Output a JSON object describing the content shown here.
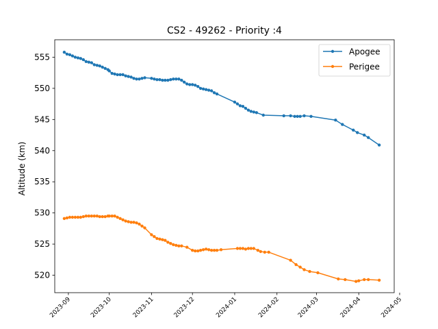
{
  "chart_data": {
    "type": "line",
    "title": "CS2 - 49262 - Priority :4",
    "xlabel": "",
    "ylabel": "Altitude (km)",
    "xlim": [
      "2023-08-22",
      "2024-04-27"
    ],
    "ylim": [
      517.2,
      557.8
    ],
    "x_tick_labels": [
      "2023-09",
      "2023-10",
      "2023-11",
      "2023-12",
      "2024-01",
      "2024-02",
      "2024-03",
      "2024-04",
      "2024-05"
    ],
    "x_ticks": [
      "2023-09-01",
      "2023-10-01",
      "2023-11-01",
      "2023-12-01",
      "2024-01-01",
      "2024-02-01",
      "2024-03-01",
      "2024-04-01",
      "2024-05-01"
    ],
    "y_ticks": [
      520,
      525,
      530,
      535,
      540,
      545,
      550,
      555
    ],
    "grid": false,
    "legend": "top-right",
    "series": [
      {
        "name": "Apogee",
        "color": "#1f77b4",
        "points": [
          [
            "2023-08-29",
            555.8
          ],
          [
            "2023-08-31",
            555.5
          ],
          [
            "2023-09-02",
            555.4
          ],
          [
            "2023-09-04",
            555.2
          ],
          [
            "2023-09-06",
            555.0
          ],
          [
            "2023-09-08",
            554.9
          ],
          [
            "2023-09-10",
            554.8
          ],
          [
            "2023-09-12",
            554.6
          ],
          [
            "2023-09-14",
            554.3
          ],
          [
            "2023-09-16",
            554.2
          ],
          [
            "2023-09-18",
            554.1
          ],
          [
            "2023-09-20",
            553.8
          ],
          [
            "2023-09-22",
            553.7
          ],
          [
            "2023-09-24",
            553.6
          ],
          [
            "2023-09-26",
            553.4
          ],
          [
            "2023-09-28",
            553.2
          ],
          [
            "2023-09-30",
            553.0
          ],
          [
            "2023-10-01",
            552.8
          ],
          [
            "2023-10-03",
            552.4
          ],
          [
            "2023-10-05",
            552.3
          ],
          [
            "2023-10-07",
            552.2
          ],
          [
            "2023-10-09",
            552.2
          ],
          [
            "2023-10-11",
            552.2
          ],
          [
            "2023-10-13",
            552.0
          ],
          [
            "2023-10-15",
            551.9
          ],
          [
            "2023-10-17",
            551.8
          ],
          [
            "2023-10-19",
            551.6
          ],
          [
            "2023-10-21",
            551.5
          ],
          [
            "2023-10-23",
            551.5
          ],
          [
            "2023-10-25",
            551.6
          ],
          [
            "2023-10-27",
            551.7
          ],
          [
            "2023-11-01",
            551.6
          ],
          [
            "2023-11-03",
            551.5
          ],
          [
            "2023-11-05",
            551.4
          ],
          [
            "2023-11-07",
            551.4
          ],
          [
            "2023-11-09",
            551.3
          ],
          [
            "2023-11-11",
            551.3
          ],
          [
            "2023-11-13",
            551.3
          ],
          [
            "2023-11-15",
            551.4
          ],
          [
            "2023-11-17",
            551.5
          ],
          [
            "2023-11-19",
            551.5
          ],
          [
            "2023-11-21",
            551.5
          ],
          [
            "2023-11-23",
            551.3
          ],
          [
            "2023-11-25",
            551.0
          ],
          [
            "2023-11-27",
            550.7
          ],
          [
            "2023-11-29",
            550.6
          ],
          [
            "2023-12-01",
            550.6
          ],
          [
            "2023-12-03",
            550.5
          ],
          [
            "2023-12-05",
            550.3
          ],
          [
            "2023-12-07",
            550.0
          ],
          [
            "2023-12-09",
            549.9
          ],
          [
            "2023-12-11",
            549.8
          ],
          [
            "2023-12-13",
            549.7
          ],
          [
            "2023-12-15",
            549.6
          ],
          [
            "2023-12-17",
            549.3
          ],
          [
            "2023-12-19",
            549.1
          ],
          [
            "2024-01-01",
            547.8
          ],
          [
            "2024-01-03",
            547.5
          ],
          [
            "2024-01-05",
            547.2
          ],
          [
            "2024-01-07",
            547.1
          ],
          [
            "2024-01-09",
            546.8
          ],
          [
            "2024-01-11",
            546.5
          ],
          [
            "2024-01-13",
            546.3
          ],
          [
            "2024-01-15",
            546.2
          ],
          [
            "2024-01-17",
            546.1
          ],
          [
            "2024-01-22",
            545.7
          ],
          [
            "2024-02-06",
            545.6
          ],
          [
            "2024-02-11",
            545.6
          ],
          [
            "2024-02-14",
            545.5
          ],
          [
            "2024-02-16",
            545.5
          ],
          [
            "2024-02-18",
            545.5
          ],
          [
            "2024-02-21",
            545.6
          ],
          [
            "2024-02-26",
            545.5
          ],
          [
            "2024-03-15",
            544.9
          ],
          [
            "2024-03-20",
            544.2
          ],
          [
            "2024-03-28",
            543.3
          ],
          [
            "2024-03-31",
            542.9
          ],
          [
            "2024-04-05",
            542.5
          ],
          [
            "2024-04-08",
            542.1
          ],
          [
            "2024-04-16",
            540.9
          ]
        ]
      },
      {
        "name": "Perigee",
        "color": "#ff7f0e",
        "points": [
          [
            "2023-08-29",
            529.1
          ],
          [
            "2023-08-31",
            529.2
          ],
          [
            "2023-09-02",
            529.3
          ],
          [
            "2023-09-04",
            529.3
          ],
          [
            "2023-09-06",
            529.3
          ],
          [
            "2023-09-08",
            529.3
          ],
          [
            "2023-09-10",
            529.3
          ],
          [
            "2023-09-12",
            529.4
          ],
          [
            "2023-09-14",
            529.5
          ],
          [
            "2023-09-16",
            529.5
          ],
          [
            "2023-09-18",
            529.5
          ],
          [
            "2023-09-20",
            529.5
          ],
          [
            "2023-09-22",
            529.5
          ],
          [
            "2023-09-24",
            529.4
          ],
          [
            "2023-09-26",
            529.4
          ],
          [
            "2023-09-28",
            529.4
          ],
          [
            "2023-09-30",
            529.5
          ],
          [
            "2023-10-01",
            529.5
          ],
          [
            "2023-10-03",
            529.5
          ],
          [
            "2023-10-05",
            529.5
          ],
          [
            "2023-10-07",
            529.3
          ],
          [
            "2023-10-09",
            529.1
          ],
          [
            "2023-10-11",
            528.9
          ],
          [
            "2023-10-13",
            528.7
          ],
          [
            "2023-10-15",
            528.6
          ],
          [
            "2023-10-17",
            528.5
          ],
          [
            "2023-10-19",
            528.5
          ],
          [
            "2023-10-21",
            528.4
          ],
          [
            "2023-10-23",
            528.2
          ],
          [
            "2023-10-25",
            527.9
          ],
          [
            "2023-10-27",
            527.6
          ],
          [
            "2023-11-01",
            526.5
          ],
          [
            "2023-11-03",
            526.2
          ],
          [
            "2023-11-05",
            525.9
          ],
          [
            "2023-11-07",
            525.8
          ],
          [
            "2023-11-09",
            525.7
          ],
          [
            "2023-11-11",
            525.6
          ],
          [
            "2023-11-13",
            525.3
          ],
          [
            "2023-11-15",
            525.1
          ],
          [
            "2023-11-17",
            524.9
          ],
          [
            "2023-11-19",
            524.8
          ],
          [
            "2023-11-21",
            524.7
          ],
          [
            "2023-11-23",
            524.7
          ],
          [
            "2023-11-27",
            524.5
          ],
          [
            "2023-12-01",
            524.0
          ],
          [
            "2023-12-03",
            523.9
          ],
          [
            "2023-12-05",
            523.9
          ],
          [
            "2023-12-07",
            524.0
          ],
          [
            "2023-12-09",
            524.1
          ],
          [
            "2023-12-11",
            524.2
          ],
          [
            "2023-12-13",
            524.1
          ],
          [
            "2023-12-15",
            524.0
          ],
          [
            "2023-12-17",
            524.0
          ],
          [
            "2023-12-19",
            524.0
          ],
          [
            "2023-12-22",
            524.1
          ],
          [
            "2024-01-03",
            524.3
          ],
          [
            "2024-01-05",
            524.3
          ],
          [
            "2024-01-07",
            524.3
          ],
          [
            "2024-01-09",
            524.2
          ],
          [
            "2024-01-11",
            524.3
          ],
          [
            "2024-01-13",
            524.3
          ],
          [
            "2024-01-15",
            524.3
          ],
          [
            "2024-01-18",
            524.0
          ],
          [
            "2024-01-20",
            523.8
          ],
          [
            "2024-01-23",
            523.7
          ],
          [
            "2024-01-26",
            523.7
          ],
          [
            "2024-02-11",
            522.4
          ],
          [
            "2024-02-15",
            521.7
          ],
          [
            "2024-02-18",
            521.3
          ],
          [
            "2024-02-21",
            520.9
          ],
          [
            "2024-02-25",
            520.6
          ],
          [
            "2024-03-02",
            520.4
          ],
          [
            "2024-03-17",
            519.4
          ],
          [
            "2024-03-22",
            519.3
          ],
          [
            "2024-03-30",
            519.0
          ],
          [
            "2024-04-01",
            519.1
          ],
          [
            "2024-04-05",
            519.3
          ],
          [
            "2024-04-08",
            519.3
          ],
          [
            "2024-04-16",
            519.2
          ]
        ]
      }
    ]
  }
}
